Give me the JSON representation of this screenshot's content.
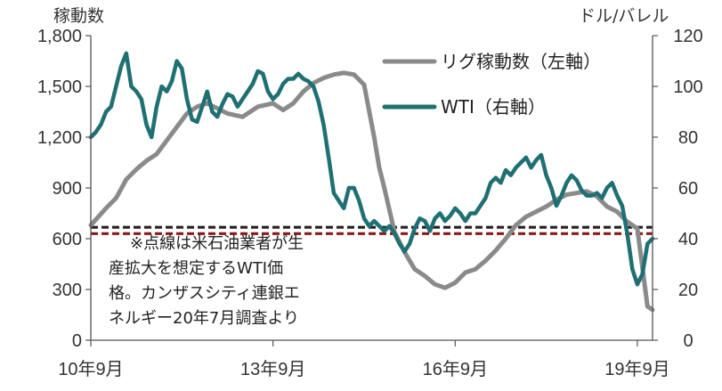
{
  "chart_data": {
    "type": "line",
    "y_left": {
      "title": "稼動数",
      "range": [
        0,
        1800
      ],
      "ticks": [
        0,
        300,
        600,
        900,
        1200,
        1500,
        1800
      ],
      "tick_labels": [
        "0",
        "300",
        "600",
        "900",
        "1,200",
        "1,500",
        "1,800"
      ]
    },
    "y_right": {
      "title": "ドル/バレル",
      "range": [
        0,
        120
      ],
      "ticks": [
        0,
        20,
        40,
        60,
        80,
        100,
        120
      ],
      "tick_labels": [
        "0",
        "20",
        "40",
        "60",
        "80",
        "100",
        "120"
      ]
    },
    "x_axis": {
      "range": [
        0,
        111
      ],
      "ticks": [
        0,
        36,
        72,
        108
      ],
      "tick_labels": [
        "10年9月",
        "13年9月",
        "16年9月",
        "19年9月"
      ]
    },
    "series": [
      {
        "name": "リグ稼動数（左軸）",
        "axis": "left",
        "color": "#8a8a8a",
        "x": [
          0,
          3,
          5,
          7,
          9,
          11,
          13,
          15,
          17,
          19,
          21,
          23,
          25,
          27,
          30,
          33,
          36,
          38,
          40,
          42,
          44,
          46,
          48,
          50,
          52,
          54,
          56,
          57,
          58,
          59,
          60,
          62,
          64,
          66,
          68,
          70,
          72,
          74,
          76,
          78,
          80,
          82,
          84,
          86,
          88,
          90,
          92,
          94,
          96,
          98,
          100,
          102,
          104,
          106,
          108,
          110,
          111
        ],
        "values": [
          680,
          780,
          840,
          950,
          1010,
          1060,
          1100,
          1180,
          1260,
          1340,
          1380,
          1400,
          1370,
          1340,
          1320,
          1380,
          1400,
          1360,
          1400,
          1470,
          1520,
          1550,
          1570,
          1580,
          1570,
          1510,
          1200,
          1020,
          900,
          770,
          640,
          520,
          420,
          380,
          330,
          310,
          340,
          400,
          420,
          470,
          530,
          600,
          680,
          730,
          760,
          790,
          830,
          860,
          870,
          880,
          850,
          790,
          760,
          700,
          660,
          200,
          180
        ]
      },
      {
        "name": "WTI（右軸）",
        "axis": "right",
        "color": "#1f7073",
        "x": [
          0,
          1,
          2,
          3,
          4,
          5,
          6,
          7,
          8,
          9,
          10,
          11,
          12,
          13,
          14,
          15,
          16,
          17,
          18,
          19,
          20,
          21,
          22,
          23,
          24,
          25,
          26,
          27,
          28,
          29,
          30,
          31,
          32,
          33,
          34,
          35,
          36,
          37,
          38,
          39,
          40,
          41,
          42,
          43,
          44,
          45,
          46,
          47,
          48,
          49,
          50,
          51,
          52,
          53,
          54,
          55,
          56,
          57,
          58,
          59,
          60,
          61,
          62,
          63,
          64,
          65,
          66,
          67,
          68,
          69,
          70,
          71,
          72,
          73,
          74,
          75,
          76,
          77,
          78,
          79,
          80,
          81,
          82,
          83,
          84,
          85,
          86,
          87,
          88,
          89,
          90,
          91,
          92,
          93,
          94,
          95,
          96,
          97,
          98,
          99,
          100,
          101,
          102,
          103,
          104,
          105,
          106,
          107,
          108,
          109,
          110,
          111
        ],
        "values": [
          80,
          82,
          85,
          90,
          92,
          100,
          108,
          113,
          100,
          98,
          95,
          85,
          80,
          92,
          100,
          98,
          102,
          110,
          107,
          95,
          87,
          86,
          92,
          98,
          90,
          88,
          93,
          97,
          96,
          92,
          95,
          98,
          101,
          106,
          105,
          98,
          95,
          97,
          101,
          103,
          103,
          105,
          103,
          102,
          100,
          94,
          85,
          72,
          58,
          55,
          52,
          60,
          60,
          55,
          48,
          45,
          47,
          45,
          43,
          45,
          42,
          38,
          35,
          38,
          44,
          48,
          47,
          43,
          48,
          50,
          47,
          49,
          52,
          50,
          47,
          50,
          50,
          53,
          56,
          62,
          64,
          62,
          67,
          65,
          68,
          70,
          72,
          68,
          71,
          73,
          65,
          60,
          53,
          57,
          62,
          65,
          63,
          59,
          57,
          57,
          58,
          56,
          60,
          62,
          57,
          53,
          42,
          28,
          22,
          26,
          38,
          40
        ]
      }
    ],
    "reference_lines": [
      {
        "axis": "right",
        "value": 44.5,
        "color": "#222222",
        "style": "dashed"
      },
      {
        "axis": "right",
        "value": 42,
        "color": "#8b1a1a",
        "style": "dashed"
      }
    ],
    "legend": {
      "position": "top-right",
      "entries": [
        "リグ稼動数（左軸）",
        "WTI（右軸）"
      ]
    },
    "annotation": {
      "lines": [
        "※点線は米石油業者が生",
        "産拡大を想定するWTI価",
        "格。カンザスシティ連銀エ",
        "ネルギー20年7月調査より"
      ]
    },
    "grid": false
  }
}
